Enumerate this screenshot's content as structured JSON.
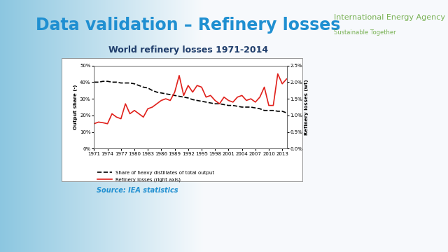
{
  "chart_data": {
    "type": "line",
    "title": "World refinery losses 1971-2014",
    "y_label": "Output share (-)",
    "y2_label": "Refinery losses (wt)",
    "x": [
      1971,
      1972,
      1973,
      1974,
      1975,
      1976,
      1977,
      1978,
      1979,
      1980,
      1981,
      1982,
      1983,
      1984,
      1985,
      1986,
      1987,
      1988,
      1989,
      1990,
      1991,
      1992,
      1993,
      1994,
      1995,
      1996,
      1997,
      1998,
      1999,
      2000,
      2001,
      2002,
      2003,
      2004,
      2005,
      2006,
      2007,
      2008,
      2009,
      2010,
      2011,
      2012,
      2013,
      2014
    ],
    "xlim": [
      1971,
      2014
    ],
    "xticks": [
      1971,
      1974,
      1977,
      1980,
      1983,
      1986,
      1989,
      1992,
      1995,
      1998,
      2001,
      2004,
      2007,
      2010,
      2013
    ],
    "ylim": [
      0,
      50
    ],
    "yticks": [
      {
        "value": 0,
        "label": "0%"
      },
      {
        "value": 10,
        "label": "10%"
      },
      {
        "value": 20,
        "label": "20%"
      },
      {
        "value": 30,
        "label": "30%"
      },
      {
        "value": 40,
        "label": "40%"
      },
      {
        "value": 50,
        "label": "50%"
      }
    ],
    "y2lim": [
      0,
      2.5
    ],
    "y2ticks": [
      {
        "value": 0,
        "label": "0.0%"
      },
      {
        "value": 0.5,
        "label": "0.5%"
      },
      {
        "value": 1.0,
        "label": "1.0%"
      },
      {
        "value": 1.5,
        "label": "1.5%"
      },
      {
        "value": 2.0,
        "label": "2.0%"
      },
      {
        "value": 2.5,
        "label": "2.5%"
      }
    ],
    "legend": "lower center",
    "grid": false,
    "series": [
      {
        "name": "Share of heavy distillates of total output",
        "color": "#000000",
        "line_style": "dashed",
        "values": [
          40,
          40,
          40.5,
          40.5,
          40,
          40,
          39.5,
          39.5,
          39.5,
          39,
          38,
          37,
          36.5,
          35,
          34,
          33.5,
          33,
          32.5,
          32,
          31.5,
          31,
          30.5,
          29.5,
          29,
          28.5,
          28,
          27.5,
          27,
          27,
          26.5,
          26,
          26,
          25.5,
          25,
          25,
          25,
          24.5,
          24,
          23,
          23,
          23,
          22.5,
          22.5,
          21.5
        ]
      },
      {
        "name": "Refinery losses (right axis)",
        "color": "#e0201b",
        "line_style": "solid",
        "axis": "y2",
        "values": [
          0.75,
          0.8,
          0.78,
          0.75,
          1.05,
          0.95,
          0.9,
          1.35,
          1.05,
          1.15,
          1.05,
          0.95,
          1.2,
          1.25,
          1.35,
          1.45,
          1.5,
          1.45,
          1.7,
          2.2,
          1.6,
          1.9,
          1.7,
          1.9,
          1.85,
          1.55,
          1.6,
          1.45,
          1.35,
          1.55,
          1.45,
          1.4,
          1.55,
          1.6,
          1.45,
          1.5,
          1.4,
          1.55,
          1.85,
          1.3,
          1.3,
          2.25,
          1.95,
          2.1
        ]
      }
    ]
  },
  "slide": {
    "title": "Data validation – Refinery losses",
    "source": "Source: IEA statistics",
    "logo": "International Energy Agency",
    "logo_tagline": "Sustainable Together"
  }
}
